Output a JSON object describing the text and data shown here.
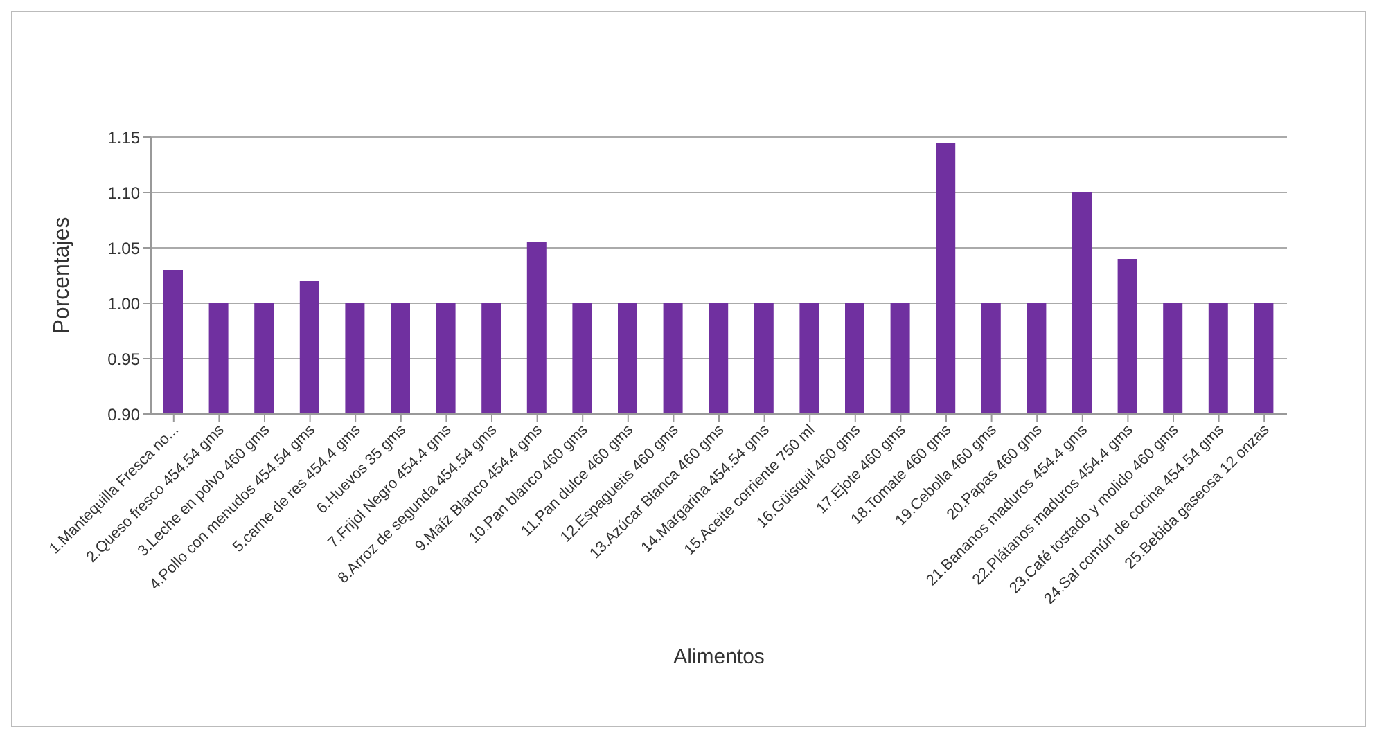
{
  "chart_data": {
    "type": "bar",
    "xlabel": "Alimentos",
    "ylabel": "Porcentajes",
    "categories": [
      "1.Mantequilla Fresca no...",
      "2.Queso fresco 454.54 gms",
      "3.Leche en polvo 460 gms",
      "4.Pollo con menudos 454.54 gms",
      "5.carne de res 454.4 gms",
      "6.Huevos 35 gms",
      "7.Frijol Negro 454.4 gms",
      "8.Arroz de segunda 454.54 gms",
      "9.Maíz Blanco  454.4 gms",
      "10.Pan blanco 460 gms",
      "11.Pan dulce 460 gms",
      "12.Espaguetis 460 gms",
      "13.Azúcar Blanca 460 gms",
      "14.Margarina 454.54 gms",
      "15.Aceite corriente 750 ml",
      "16.Güisquil 460 gms",
      "17.Ejote 460 gms",
      "18.Tomate 460 gms",
      "19.Cebolla 460 gms",
      "20.Papas 460 gms",
      "21.Bananos maduros 454.4 gms",
      "22.Plátanos maduros 454.4 gms",
      "23.Café tostado y molido 460 gms",
      "24.Sal común de cocina 454.54 gms",
      "25.Bebida gaseosa 12 onzas"
    ],
    "values": [
      1.03,
      1.0,
      1.0,
      1.02,
      1.0,
      1.0,
      1.0,
      1.0,
      1.055,
      1.0,
      1.0,
      1.0,
      1.0,
      1.0,
      1.0,
      1.0,
      1.0,
      1.145,
      1.0,
      1.0,
      1.1,
      1.04,
      1.0,
      1.0,
      1.0
    ],
    "color": "#7030a0",
    "ylim": [
      0.9,
      1.15
    ],
    "yticks": [
      {
        "value": 0.9,
        "label": "0.90"
      },
      {
        "value": 0.95,
        "label": "0.95"
      },
      {
        "value": 1.0,
        "label": "1.00"
      },
      {
        "value": 1.05,
        "label": "1.05"
      },
      {
        "value": 1.1,
        "label": "1.10"
      },
      {
        "value": 1.15,
        "label": "1.15"
      }
    ],
    "grid": "y"
  }
}
